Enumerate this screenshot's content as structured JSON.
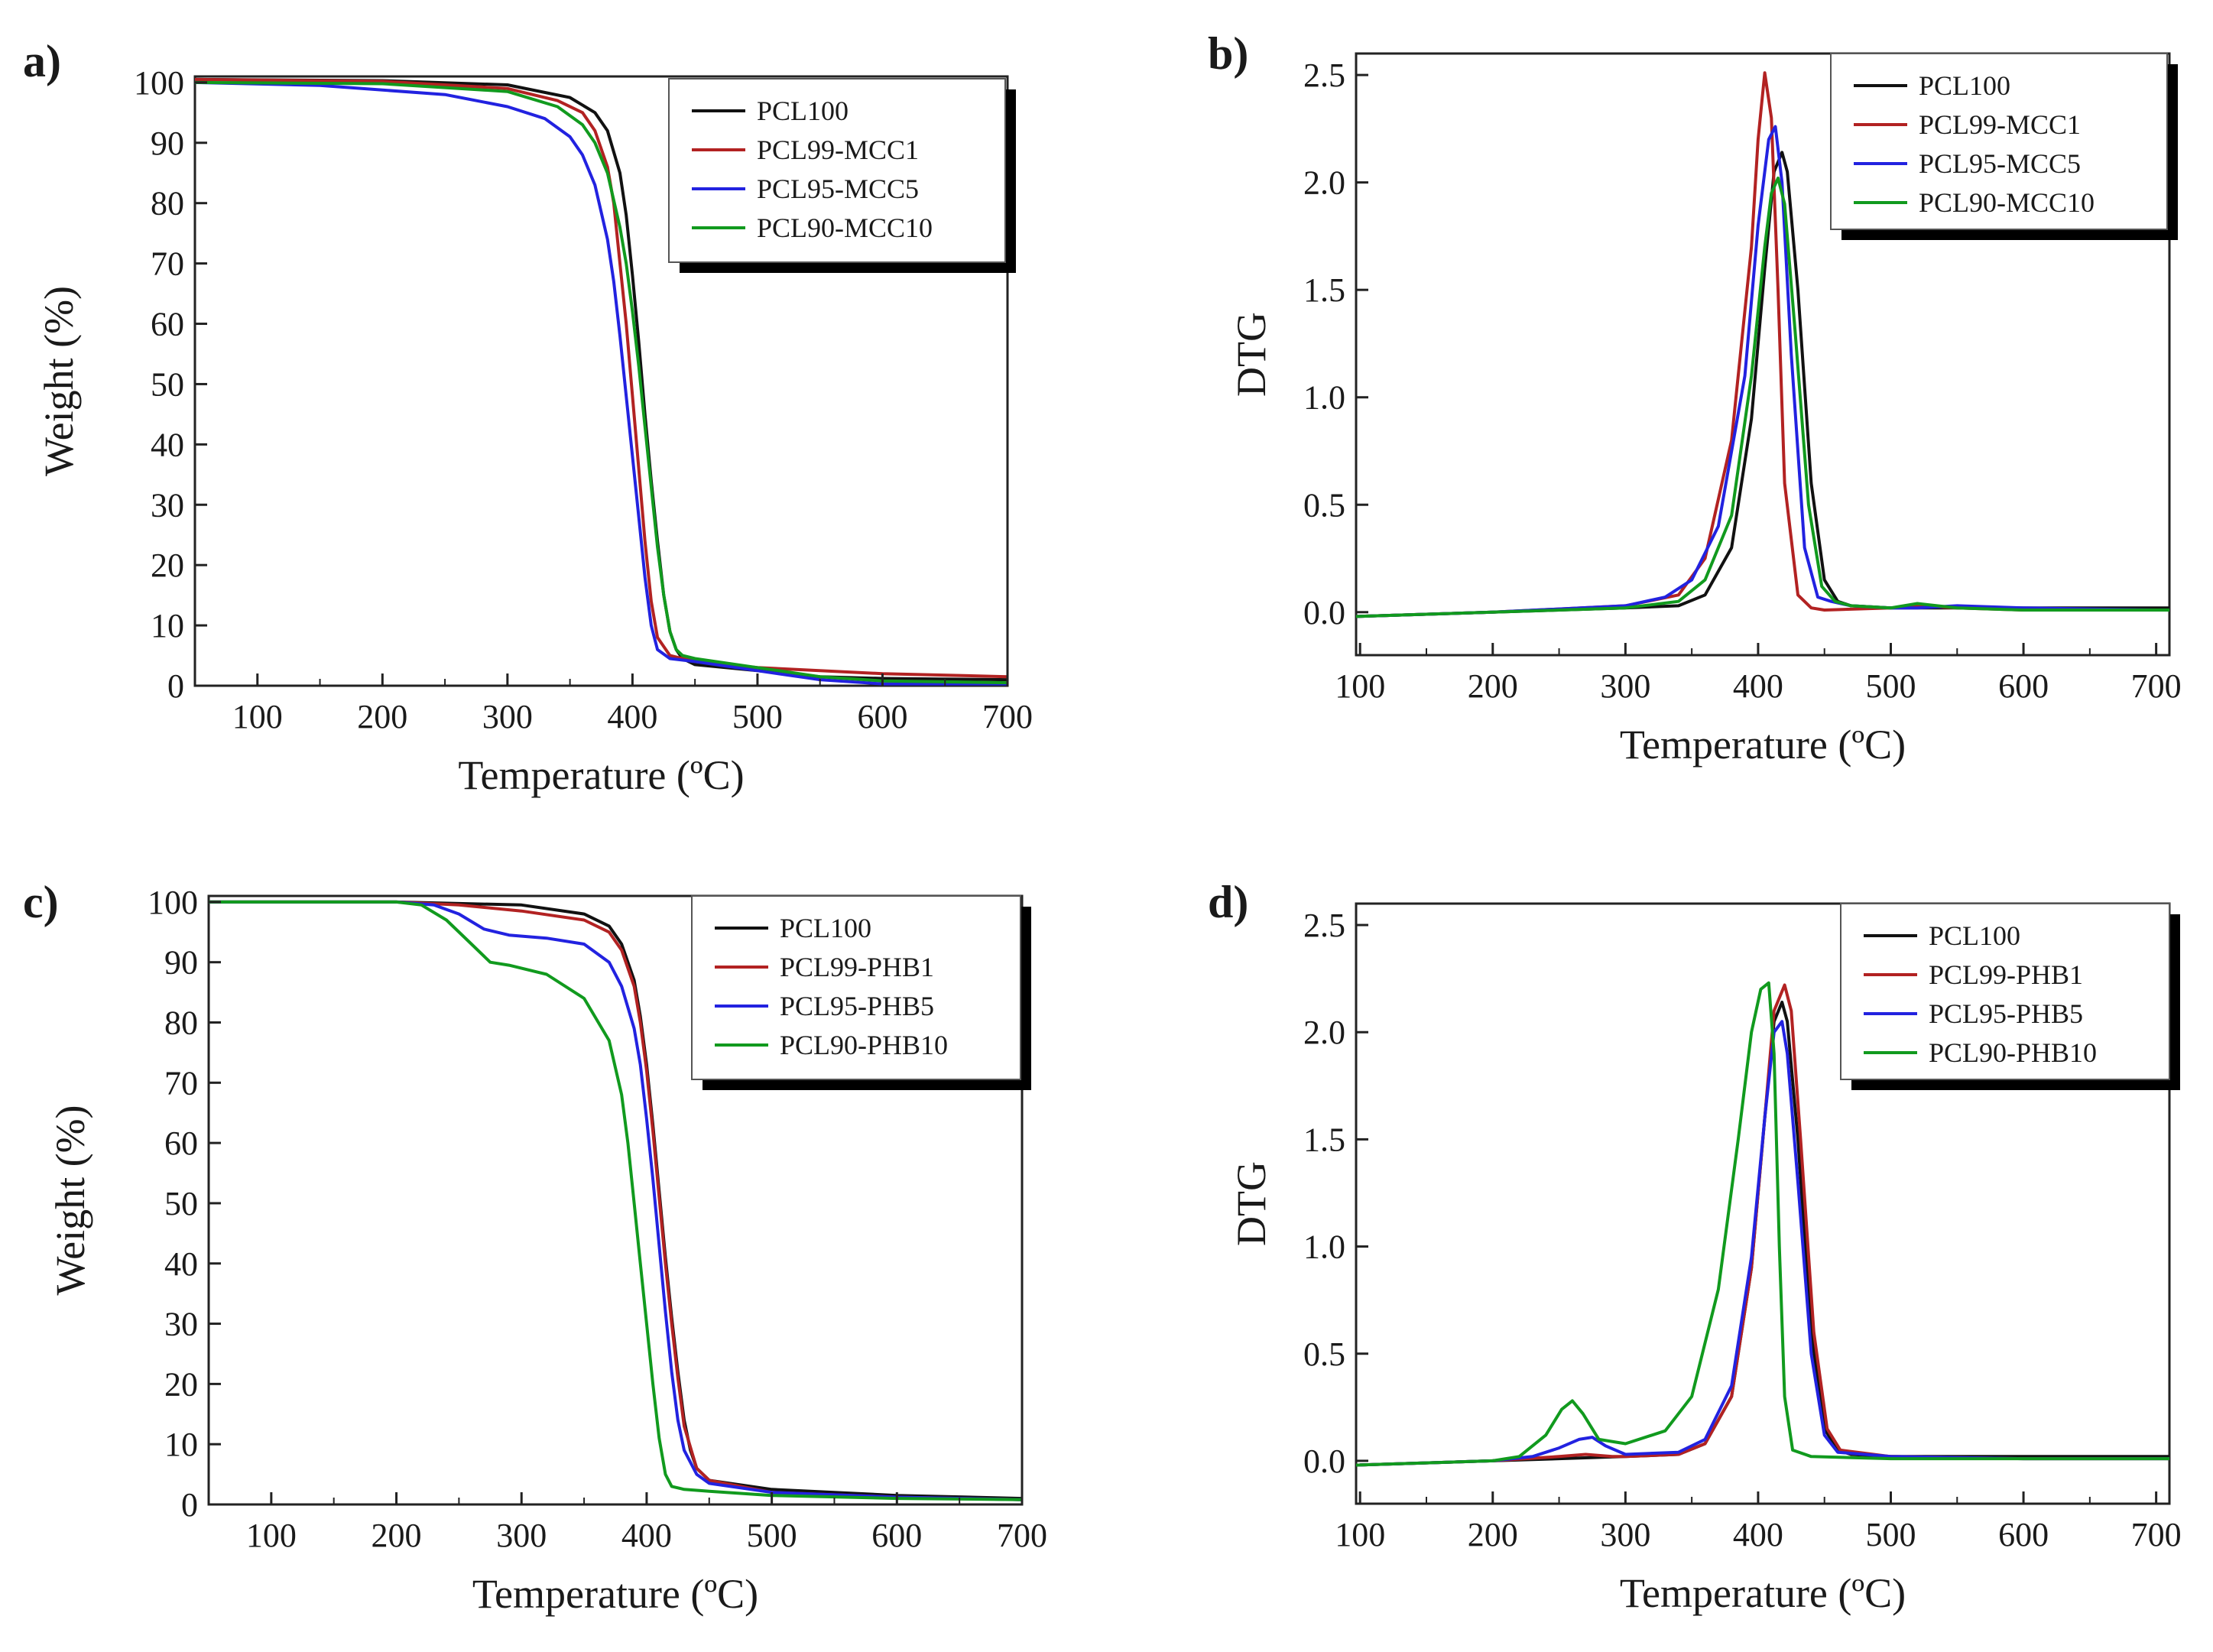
{
  "figure": {
    "panel_labels": [
      "a)",
      "b)",
      "c)",
      "d)"
    ]
  },
  "colors": {
    "PCL100": "#111111",
    "red": "#b22222",
    "blue": "#2222e0",
    "green": "#119a1e"
  },
  "chart_data": [
    {
      "panel": "a)",
      "type": "line",
      "xlabel": "Temperature (ºC)",
      "ylabel": "Weight (%)",
      "xlim": [
        50,
        700
      ],
      "ylim": [
        0,
        101
      ],
      "xticks": [
        100,
        200,
        300,
        400,
        500,
        600,
        700
      ],
      "yticks": [
        0,
        10,
        20,
        30,
        40,
        50,
        60,
        70,
        80,
        90,
        100
      ],
      "legend": "top-right",
      "series": [
        {
          "name": "PCL100",
          "color": "#111111",
          "x": [
            50,
            200,
            300,
            350,
            370,
            380,
            390,
            395,
            400,
            405,
            410,
            415,
            420,
            425,
            430,
            435,
            440,
            450,
            500,
            550,
            600,
            700
          ],
          "y": [
            100.5,
            100.3,
            99.6,
            97.5,
            95,
            92,
            85,
            78,
            68,
            57,
            45,
            34,
            24,
            15,
            9,
            6,
            4.5,
            3.5,
            2.5,
            1.5,
            1.2,
            1
          ]
        },
        {
          "name": "PCL99-MCC1",
          "color": "#b22222",
          "x": [
            50,
            200,
            300,
            340,
            360,
            370,
            380,
            385,
            390,
            395,
            400,
            405,
            410,
            415,
            420,
            430,
            450,
            500,
            600,
            700
          ],
          "y": [
            100.5,
            100.2,
            99,
            97,
            95,
            92,
            86,
            80,
            70,
            60,
            48,
            36,
            24,
            14,
            8,
            5,
            4,
            3,
            2,
            1.5
          ]
        },
        {
          "name": "PCL95-MCC5",
          "color": "#2222e0",
          "x": [
            50,
            150,
            250,
            300,
            330,
            350,
            360,
            370,
            380,
            385,
            390,
            395,
            400,
            405,
            410,
            415,
            420,
            430,
            450,
            500,
            550,
            600,
            700
          ],
          "y": [
            100,
            99.5,
            98,
            96,
            94,
            91,
            88,
            83,
            74,
            67,
            58,
            48,
            38,
            28,
            18,
            10,
            6,
            4.5,
            4,
            2.5,
            1,
            0.3,
            0.3
          ]
        },
        {
          "name": "PCL90-MCC10",
          "color": "#119a1e",
          "x": [
            50,
            200,
            300,
            340,
            360,
            370,
            380,
            390,
            395,
            400,
            405,
            410,
            415,
            420,
            425,
            430,
            435,
            440,
            450,
            500,
            550,
            600,
            700
          ],
          "y": [
            100,
            99.8,
            98.5,
            96,
            93,
            90,
            85,
            76,
            70,
            62,
            53,
            43,
            33,
            23,
            15,
            9,
            6,
            5,
            4.5,
            3,
            1.5,
            0.8,
            0.5
          ]
        }
      ]
    },
    {
      "panel": "b)",
      "type": "line",
      "xlabel": "Temperature (ºC)",
      "ylabel": "DTG",
      "xlim": [
        97,
        710
      ],
      "ylim": [
        -0.2,
        2.6
      ],
      "xticks": [
        100,
        200,
        300,
        400,
        500,
        600,
        700
      ],
      "yticks": [
        0.0,
        0.5,
        1.0,
        1.5,
        2.0,
        2.5
      ],
      "legend": "top-right",
      "series": [
        {
          "name": "PCL100",
          "color": "#111111",
          "x": [
            97,
            200,
            300,
            340,
            360,
            380,
            395,
            405,
            412,
            418,
            422,
            430,
            440,
            450,
            460,
            470,
            500,
            550,
            600,
            700,
            710
          ],
          "y": [
            -0.02,
            0,
            0.02,
            0.03,
            0.08,
            0.3,
            0.9,
            1.6,
            2.05,
            2.14,
            2.05,
            1.5,
            0.6,
            0.15,
            0.05,
            0.03,
            0.02,
            0.02,
            0.02,
            0.02,
            0.02
          ]
        },
        {
          "name": "PCL99-MCC1",
          "color": "#b22222",
          "x": [
            97,
            200,
            300,
            340,
            360,
            380,
            395,
            400,
            405,
            410,
            415,
            420,
            430,
            440,
            450,
            500,
            520,
            550,
            600,
            700,
            710
          ],
          "y": [
            -0.02,
            0,
            0.03,
            0.08,
            0.25,
            0.8,
            1.7,
            2.2,
            2.51,
            2.3,
            1.5,
            0.6,
            0.08,
            0.02,
            0.01,
            0.02,
            0.03,
            0.02,
            0.01,
            0.01,
            0.01
          ]
        },
        {
          "name": "PCL95-MCC5",
          "color": "#2222e0",
          "x": [
            97,
            200,
            300,
            330,
            350,
            370,
            390,
            400,
            408,
            413,
            418,
            425,
            435,
            445,
            455,
            470,
            500,
            520,
            550,
            600,
            700,
            710
          ],
          "y": [
            -0.02,
            0,
            0.03,
            0.07,
            0.15,
            0.4,
            1.1,
            1.8,
            2.2,
            2.26,
            2.0,
            1.2,
            0.3,
            0.07,
            0.05,
            0.03,
            0.02,
            0.02,
            0.03,
            0.02,
            0.01,
            0.01
          ]
        },
        {
          "name": "PCL90-MCC10",
          "color": "#119a1e",
          "x": [
            97,
            200,
            300,
            340,
            360,
            380,
            395,
            405,
            410,
            415,
            420,
            428,
            438,
            448,
            458,
            470,
            500,
            520,
            550,
            600,
            700,
            710
          ],
          "y": [
            -0.02,
            0,
            0.02,
            0.05,
            0.15,
            0.45,
            1.1,
            1.7,
            1.95,
            2.02,
            1.9,
            1.3,
            0.5,
            0.12,
            0.05,
            0.03,
            0.02,
            0.04,
            0.02,
            0.01,
            0.01,
            0.01
          ]
        }
      ]
    },
    {
      "panel": "c)",
      "type": "line",
      "xlabel": "Temperature (ºC)",
      "ylabel": "Weight (%)",
      "xlim": [
        50,
        700
      ],
      "ylim": [
        0,
        101
      ],
      "xticks": [
        100,
        200,
        300,
        400,
        500,
        600,
        700
      ],
      "yticks": [
        0,
        10,
        20,
        30,
        40,
        50,
        60,
        70,
        80,
        90,
        100
      ],
      "legend": "top-right",
      "series": [
        {
          "name": "PCL100",
          "color": "#111111",
          "x": [
            50,
            200,
            300,
            350,
            370,
            380,
            390,
            395,
            400,
            405,
            410,
            415,
            420,
            425,
            430,
            435,
            440,
            450,
            500,
            550,
            600,
            700
          ],
          "y": [
            100,
            100,
            99.5,
            98,
            96,
            93,
            87,
            81,
            73,
            63,
            52,
            41,
            31,
            22,
            14,
            9,
            6,
            4,
            2.5,
            2,
            1.5,
            1
          ]
        },
        {
          "name": "PCL99-PHB1",
          "color": "#b22222",
          "x": [
            50,
            200,
            250,
            300,
            350,
            370,
            380,
            390,
            395,
            400,
            405,
            410,
            415,
            420,
            425,
            430,
            440,
            450,
            500,
            600,
            700
          ],
          "y": [
            100,
            100,
            99.5,
            98.5,
            97,
            95,
            92,
            86,
            80,
            72,
            62,
            51,
            40,
            30,
            21,
            13,
            6,
            4,
            2,
            1.2,
            0.8
          ]
        },
        {
          "name": "PCL95-PHB5",
          "color": "#2222e0",
          "x": [
            50,
            200,
            230,
            250,
            270,
            290,
            320,
            350,
            370,
            380,
            390,
            395,
            400,
            405,
            410,
            415,
            420,
            425,
            430,
            440,
            450,
            500,
            600,
            700
          ],
          "y": [
            100,
            100,
            99.5,
            98,
            95.5,
            94.5,
            94,
            93,
            90,
            86,
            79,
            73,
            64,
            54,
            43,
            32,
            22,
            14,
            9,
            5,
            3.5,
            2,
            1.2,
            0.8
          ]
        },
        {
          "name": "PCL90-PHB10",
          "color": "#119a1e",
          "x": [
            50,
            200,
            220,
            240,
            260,
            275,
            290,
            320,
            350,
            370,
            380,
            385,
            390,
            395,
            400,
            405,
            410,
            415,
            420,
            430,
            450,
            500,
            600,
            700
          ],
          "y": [
            100,
            100,
            99.5,
            97,
            93,
            90,
            89.5,
            88,
            84,
            77,
            68,
            60,
            50,
            40,
            30,
            20,
            11,
            5,
            3,
            2.5,
            2.2,
            1.5,
            1,
            0.8
          ]
        }
      ]
    },
    {
      "panel": "d)",
      "type": "line",
      "xlabel": "Temperature (ºC)",
      "ylabel": "DTG",
      "xlim": [
        97,
        710
      ],
      "ylim": [
        -0.2,
        2.6
      ],
      "xticks": [
        100,
        200,
        300,
        400,
        500,
        600,
        700
      ],
      "yticks": [
        0.0,
        0.5,
        1.0,
        1.5,
        2.0,
        2.5
      ],
      "legend": "top-right",
      "series": [
        {
          "name": "PCL100",
          "color": "#111111",
          "x": [
            97,
            200,
            250,
            300,
            340,
            360,
            380,
            395,
            405,
            412,
            418,
            422,
            430,
            440,
            450,
            460,
            470,
            500,
            550,
            600,
            700,
            710
          ],
          "y": [
            -0.02,
            0,
            0.01,
            0.02,
            0.03,
            0.08,
            0.3,
            0.9,
            1.6,
            2.05,
            2.14,
            2.05,
            1.5,
            0.6,
            0.15,
            0.05,
            0.03,
            0.02,
            0.02,
            0.02,
            0.02,
            0.02
          ]
        },
        {
          "name": "PCL99-PHB1",
          "color": "#b22222",
          "x": [
            97,
            200,
            250,
            270,
            290,
            300,
            340,
            360,
            380,
            395,
            405,
            412,
            420,
            425,
            432,
            442,
            452,
            462,
            500,
            600,
            700,
            710
          ],
          "y": [
            -0.02,
            0,
            0.02,
            0.03,
            0.02,
            0.02,
            0.03,
            0.08,
            0.3,
            0.9,
            1.6,
            2.1,
            2.22,
            2.1,
            1.5,
            0.6,
            0.15,
            0.05,
            0.02,
            0.01,
            0.01,
            0.01
          ]
        },
        {
          "name": "PCL95-PHB5",
          "color": "#2222e0",
          "x": [
            97,
            200,
            230,
            250,
            265,
            275,
            285,
            300,
            340,
            360,
            380,
            395,
            405,
            412,
            418,
            422,
            430,
            440,
            450,
            460,
            500,
            600,
            700,
            710
          ],
          "y": [
            -0.02,
            0,
            0.02,
            0.06,
            0.1,
            0.11,
            0.07,
            0.03,
            0.04,
            0.1,
            0.35,
            0.95,
            1.6,
            2.0,
            2.05,
            1.9,
            1.3,
            0.5,
            0.12,
            0.04,
            0.02,
            0.01,
            0.01,
            0.01
          ]
        },
        {
          "name": "PCL90-PHB10",
          "color": "#119a1e",
          "x": [
            97,
            200,
            220,
            240,
            252,
            260,
            268,
            280,
            300,
            330,
            350,
            370,
            385,
            395,
            402,
            408,
            412,
            416,
            420,
            426,
            440,
            500,
            600,
            700,
            710
          ],
          "y": [
            -0.02,
            0,
            0.02,
            0.12,
            0.24,
            0.28,
            0.22,
            0.1,
            0.08,
            0.14,
            0.3,
            0.8,
            1.5,
            2.0,
            2.2,
            2.23,
            1.9,
            1.0,
            0.3,
            0.05,
            0.02,
            0.01,
            0.01,
            0.01,
            0.01
          ]
        }
      ]
    }
  ]
}
